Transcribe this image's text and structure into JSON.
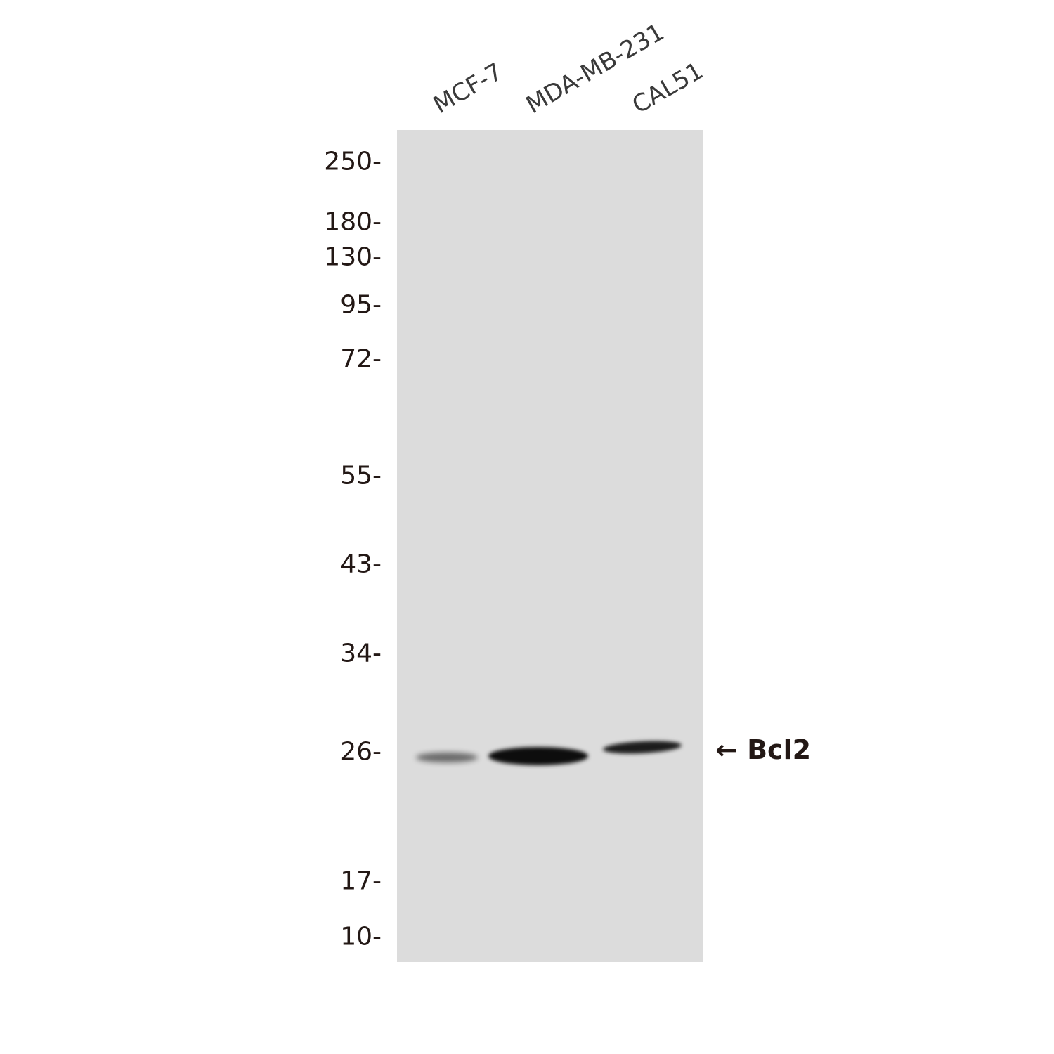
{
  "lanes": [
    {
      "label": "MCF-7",
      "band_intensity": "weak"
    },
    {
      "label": "MDA-MB-231",
      "band_intensity": "strong"
    },
    {
      "label": "CAL51",
      "band_intensity": "moderate"
    }
  ],
  "markers": [
    "250-",
    "180-",
    "130-",
    "95-",
    "72-",
    "55-",
    "43-",
    "34-",
    "26-",
    "17-",
    "10-"
  ],
  "target": {
    "arrow": "←",
    "label": "Bcl2"
  },
  "colors": {
    "membrane": "#dcdcdc",
    "band": "#111111",
    "text": "#231815"
  }
}
